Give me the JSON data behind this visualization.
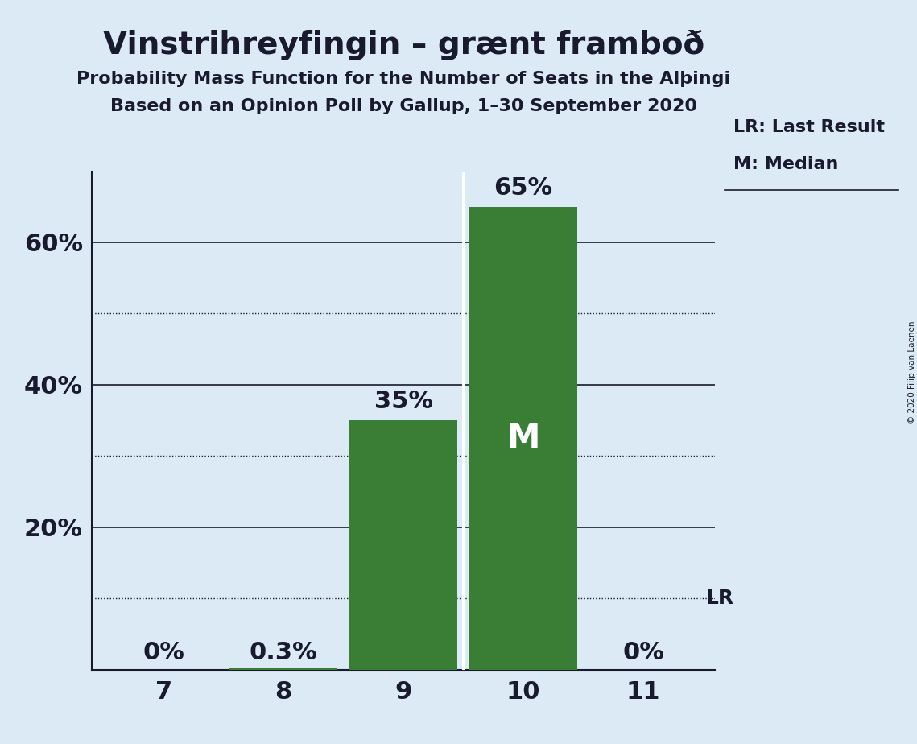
{
  "title": "Vinstrihreyfingin – grænt framboð",
  "subtitle1": "Probability Mass Function for the Number of Seats in the Alþingi",
  "subtitle2": "Based on an Opinion Poll by Gallup, 1–30 September 2020",
  "copyright": "© 2020 Filip van Laenen",
  "seats": [
    7,
    8,
    9,
    10,
    11
  ],
  "probabilities": [
    0.0,
    0.003,
    0.35,
    0.65,
    0.0
  ],
  "bar_color": "#3a7d35",
  "background_color": "#dbeaf5",
  "text_color": "#1a1a2e",
  "median": 10,
  "last_result_prob": 0.1,
  "ylim": [
    0,
    0.7
  ],
  "yticks_solid": [
    0.2,
    0.4,
    0.6
  ],
  "ytick_labels_solid": [
    "20%",
    "40%",
    "60%"
  ],
  "yticks_dotted": [
    0.1,
    0.3,
    0.5
  ],
  "bar_labels": [
    "0%",
    "0.3%",
    "35%",
    "65%",
    "0%"
  ],
  "lr_level": 0.1,
  "legend_lr": "LR: Last Result",
  "legend_m": "M: Median"
}
